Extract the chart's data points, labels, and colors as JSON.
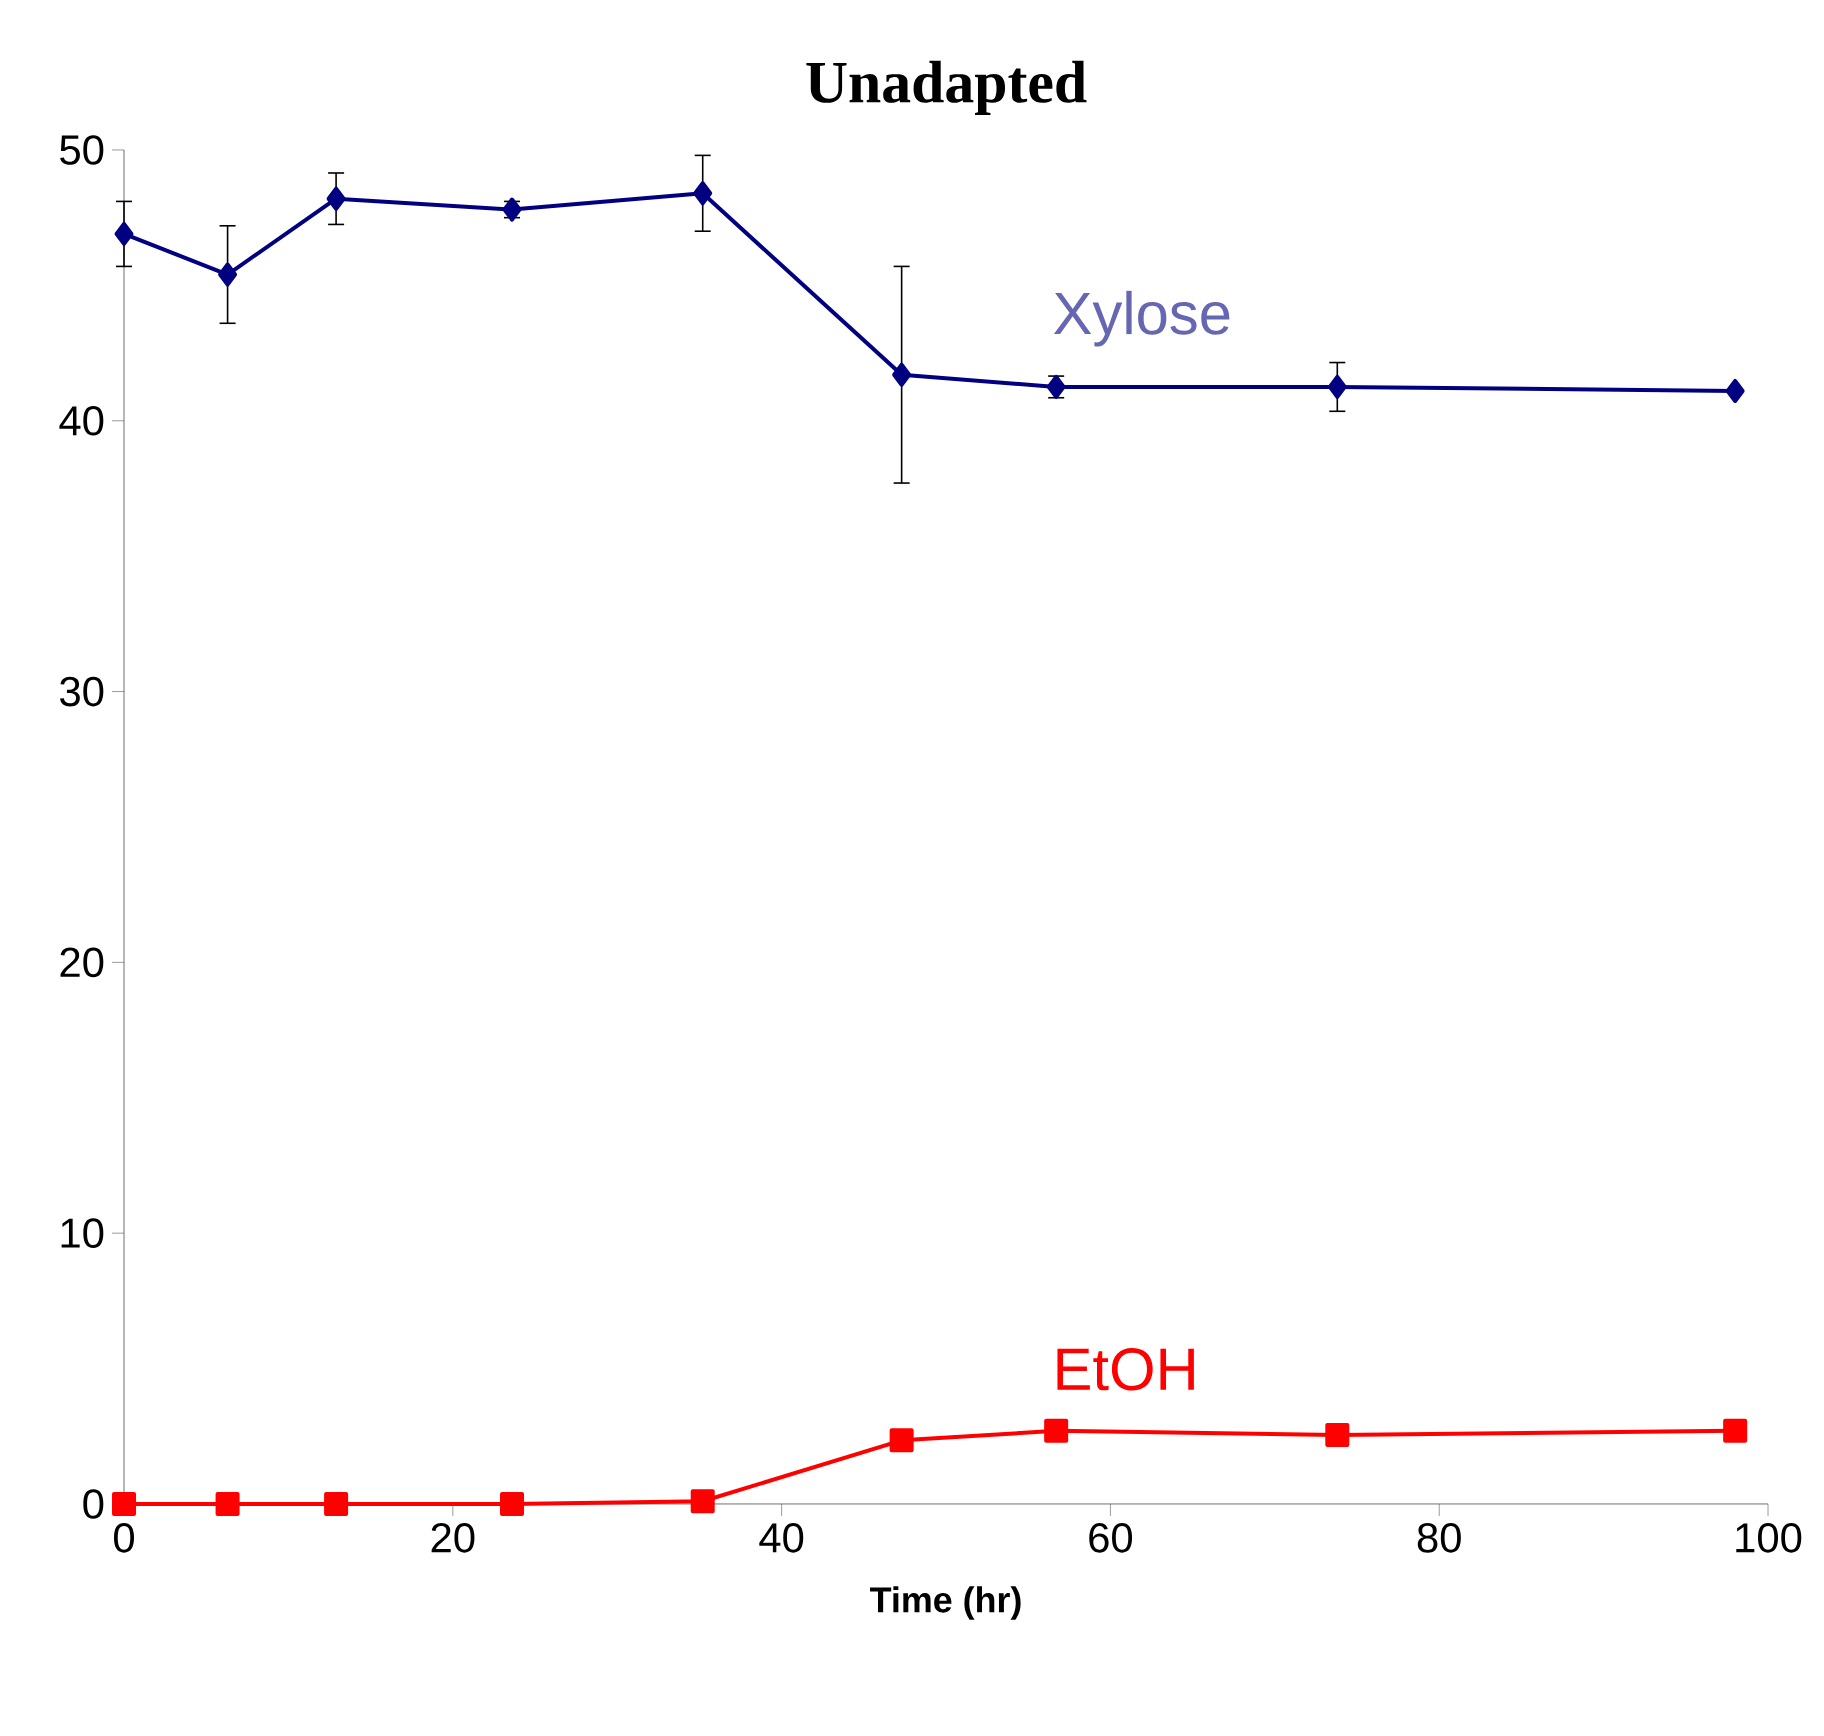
{
  "chart_data": {
    "type": "line",
    "title": "Unadapted",
    "xlabel": "Time (hr)",
    "xlim": [
      0,
      100
    ],
    "xticks": [
      0,
      20,
      40,
      60,
      80,
      100
    ],
    "ylim": [
      0,
      50
    ],
    "yticks": [
      0,
      10,
      20,
      30,
      40,
      50
    ],
    "grid": false,
    "series": [
      {
        "name": "Xylose",
        "color": "#000080",
        "marker": "diamond",
        "x": [
          0,
          6.3,
          12.9,
          23.6,
          35.2,
          47.3,
          56.7,
          73.8,
          98
        ],
        "values": [
          46.9,
          45.4,
          48.2,
          47.8,
          48.4,
          41.7,
          41.25,
          41.25,
          41.1
        ],
        "errors": [
          1.2,
          1.8,
          0.95,
          0.3,
          1.4,
          4,
          0.4,
          0.9,
          null
        ]
      },
      {
        "name": "EtOH",
        "color": "#ff0000",
        "marker": "square",
        "x": [
          0,
          6.3,
          12.9,
          23.6,
          35.2,
          47.3,
          56.7,
          73.8,
          98
        ],
        "values": [
          0,
          0,
          0,
          0,
          0.1,
          2.35,
          2.7,
          2.55,
          2.7
        ]
      }
    ]
  }
}
